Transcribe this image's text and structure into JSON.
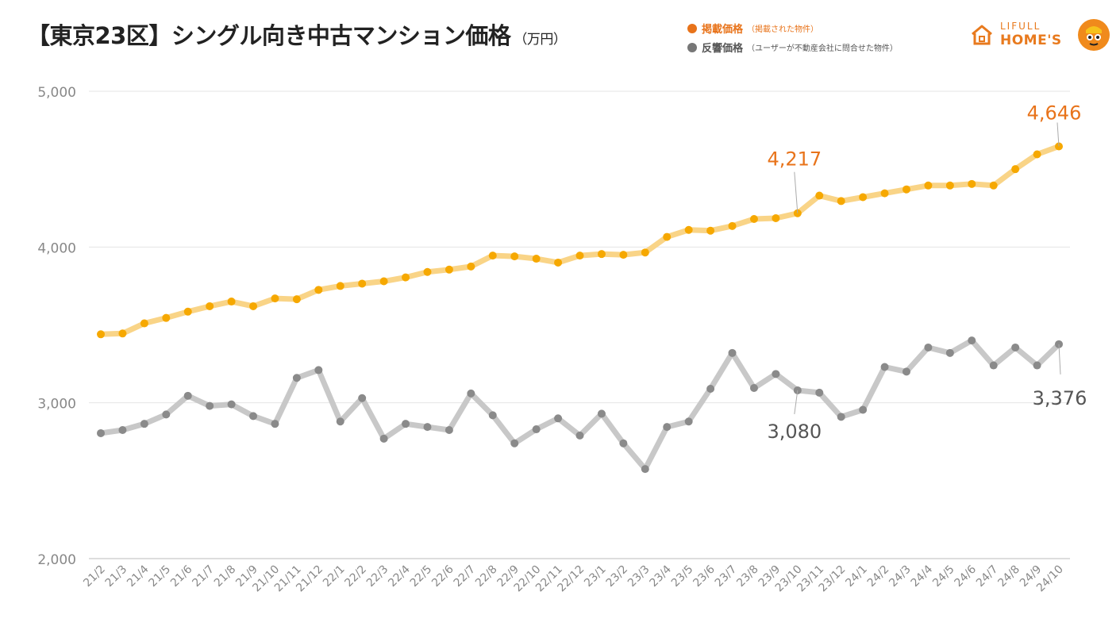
{
  "title": {
    "main": "【東京23区】シングル向き中古マンション価格",
    "unit": "（万円）"
  },
  "legend": [
    {
      "name": "掲載価格",
      "note": "（掲載された物件）",
      "color": "#e8731a"
    },
    {
      "name": "反響価格",
      "note": "（ユーザーが不動産会社に問合せた物件）",
      "color": "#777777"
    }
  ],
  "brand": {
    "top": "LIFULL",
    "bottom": "HOME'S",
    "color": "#e87a1e"
  },
  "chart_data": {
    "type": "line",
    "title": "【東京23区】シングル向き中古マンション価格",
    "xlabel": "",
    "ylabel": "",
    "ylim": [
      2000,
      5000
    ],
    "yticks": [
      2000,
      3000,
      4000,
      5000
    ],
    "ytick_labels": [
      "2,000",
      "3,000",
      "4,000",
      "5,000"
    ],
    "grid": "horizontal",
    "legend_position": "top-right",
    "categories": [
      "21/2",
      "21/3",
      "21/4",
      "21/5",
      "21/6",
      "21/7",
      "21/8",
      "21/9",
      "21/10",
      "21/11",
      "21/12",
      "22/1",
      "22/2",
      "22/3",
      "22/4",
      "22/5",
      "22/6",
      "22/7",
      "22/8",
      "22/9",
      "22/10",
      "22/11",
      "22/12",
      "23/1",
      "23/2",
      "23/3",
      "23/4",
      "23/5",
      "23/6",
      "23/7",
      "23/8",
      "23/9",
      "23/10",
      "23/11",
      "23/12",
      "24/1",
      "24/2",
      "24/3",
      "24/4",
      "24/5",
      "24/6",
      "24/7",
      "24/8",
      "24/9",
      "24/10"
    ],
    "series": [
      {
        "name": "掲載価格",
        "color": "#f6a800",
        "line_color": "#f9d487",
        "label_color": "#e8731a",
        "values": [
          3440,
          3445,
          3510,
          3545,
          3585,
          3620,
          3650,
          3620,
          3670,
          3665,
          3725,
          3750,
          3765,
          3780,
          3805,
          3840,
          3855,
          3875,
          3945,
          3940,
          3925,
          3900,
          3945,
          3955,
          3950,
          3965,
          4065,
          4110,
          4105,
          4135,
          4180,
          4185,
          4217,
          4330,
          4295,
          4320,
          4345,
          4370,
          4395,
          4395,
          4405,
          4395,
          4500,
          4595,
          4646
        ]
      },
      {
        "name": "反響価格",
        "color": "#8a8a8a",
        "line_color": "#c8c8c8",
        "label_color": "#555555",
        "values": [
          2805,
          2825,
          2865,
          2925,
          3045,
          2980,
          2990,
          2915,
          2865,
          3160,
          3210,
          2880,
          3030,
          2770,
          2865,
          2845,
          2825,
          3060,
          2920,
          2740,
          2830,
          2900,
          2790,
          2930,
          2740,
          2575,
          2845,
          2880,
          3090,
          3320,
          3095,
          3185,
          3080,
          3065,
          2910,
          2955,
          3230,
          3200,
          3355,
          3320,
          3400,
          3240,
          3355,
          3240,
          3376
        ]
      }
    ],
    "annotations": [
      {
        "series": 0,
        "category": "23/10",
        "text": "4,217"
      },
      {
        "series": 0,
        "category": "24/10",
        "text": "4,646"
      },
      {
        "series": 1,
        "category": "23/10",
        "text": "3,080"
      },
      {
        "series": 1,
        "category": "24/10",
        "text": "3,376"
      }
    ]
  }
}
